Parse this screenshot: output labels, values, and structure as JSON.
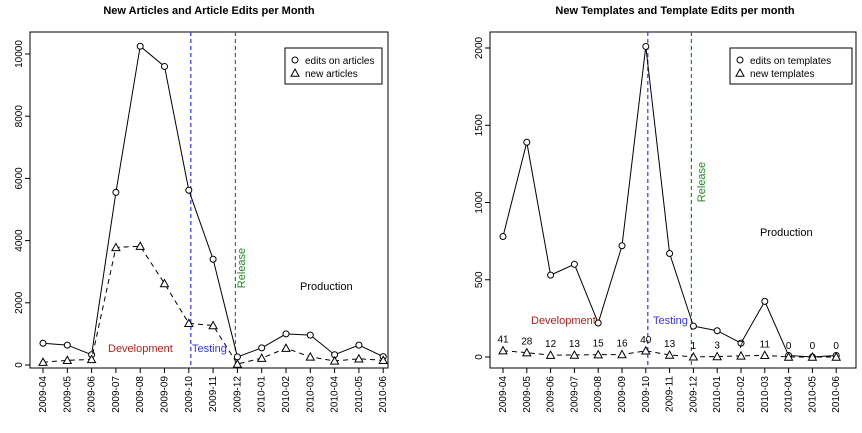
{
  "chart_data": [
    {
      "type": "line",
      "title": "New Articles and Article Edits per Month",
      "xlabel": "",
      "ylabel": "",
      "categories": [
        "2009-04",
        "2009-05",
        "2009-06",
        "2009-07",
        "2009-08",
        "2009-09",
        "2009-10",
        "2009-11",
        "2009-12",
        "2010-01",
        "2010-02",
        "2010-03",
        "2010-04",
        "2010-05",
        "2010-06"
      ],
      "ylim": [
        0,
        10600
      ],
      "yticks": [
        "0",
        "2000",
        "4000",
        "6000",
        "8000",
        "10000"
      ],
      "legend_position": "top-right",
      "series": [
        {
          "name": "edits on articles",
          "marker": "circle",
          "line": "solid",
          "values": [
            700,
            640,
            330,
            5550,
            10250,
            9600,
            5620,
            3400,
            260,
            550,
            1000,
            960,
            330,
            640,
            270
          ]
        },
        {
          "name": "new articles",
          "marker": "triangle",
          "line": "dashed",
          "values": [
            90,
            150,
            180,
            3780,
            3820,
            2620,
            1340,
            1270,
            30,
            220,
            540,
            260,
            130,
            200,
            150
          ]
        }
      ],
      "vlines": [
        {
          "at": "2009-10",
          "color": "#3333ff"
        },
        {
          "at": "2009-12",
          "color": "#228B22"
        }
      ],
      "annotations": [
        {
          "text": "Development",
          "color": "#b22222"
        },
        {
          "text": "Testing",
          "color": "#3333ff"
        },
        {
          "text": "Release",
          "color": "#228B22"
        },
        {
          "text": "Production",
          "color": "#000000"
        }
      ]
    },
    {
      "type": "line",
      "title": "New Templates and Template Edits per month",
      "xlabel": "",
      "ylabel": "",
      "categories": [
        "2009-04",
        "2009-05",
        "2009-06",
        "2009-07",
        "2009-08",
        "2009-09",
        "2009-10",
        "2009-11",
        "2009-12",
        "2010-01",
        "2010-02",
        "2010-03",
        "2010-04",
        "2010-05",
        "2010-06"
      ],
      "ylim": [
        0,
        2060
      ],
      "yticks": [
        "0",
        "500",
        "1000",
        "1500",
        "2000"
      ],
      "legend_position": "top-right",
      "series": [
        {
          "name": "edits on templates",
          "marker": "circle",
          "line": "solid",
          "values": [
            780,
            1390,
            530,
            600,
            220,
            720,
            2010,
            670,
            200,
            170,
            90,
            360,
            10,
            0,
            10
          ]
        },
        {
          "name": "new templates",
          "marker": "triangle",
          "line": "dashed",
          "values": [
            41,
            28,
            12,
            13,
            15,
            16,
            40,
            13,
            1,
            3,
            7,
            11,
            0,
            0,
            0
          ]
        }
      ],
      "point_labels": [
        "41",
        "28",
        "12",
        "13",
        "15",
        "16",
        "40",
        "13",
        "1",
        "3",
        "7",
        "11",
        "0",
        "0",
        "0"
      ],
      "vlines": [
        {
          "at": "2009-10",
          "color": "#3333ff"
        },
        {
          "at": "2009-12",
          "color": "#228B22"
        }
      ],
      "annotations": [
        {
          "text": "Development",
          "color": "#b22222"
        },
        {
          "text": "Testing",
          "color": "#3333ff"
        },
        {
          "text": "Release",
          "color": "#228B22"
        },
        {
          "text": "Production",
          "color": "#000000"
        }
      ]
    }
  ]
}
